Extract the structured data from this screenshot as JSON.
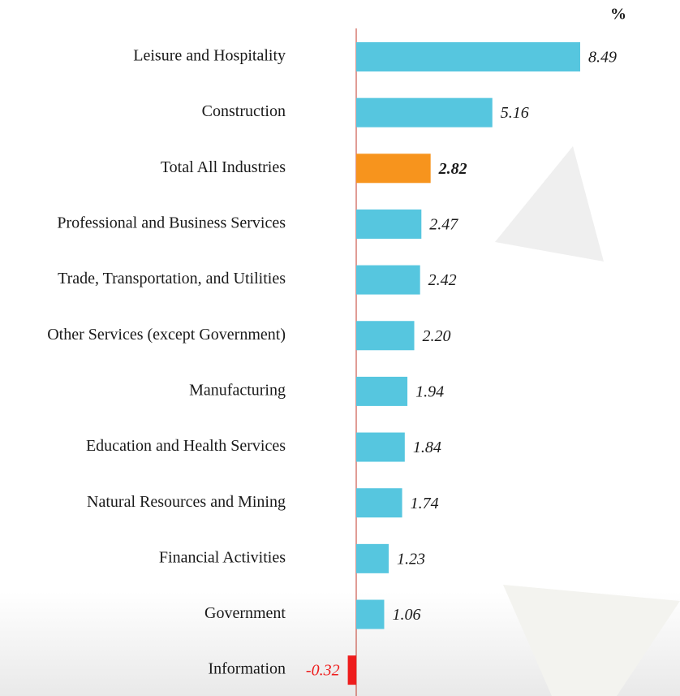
{
  "chart_data": {
    "type": "bar",
    "orientation": "horizontal",
    "unit_label": "%",
    "categories": [
      "Leisure and Hospitality",
      "Construction",
      "Total All Industries",
      "Professional and Business Services",
      "Trade, Transportation, and Utilities",
      "Other Services (except Government)",
      "Manufacturing",
      "Education and Health Services",
      "Natural Resources and Mining",
      "Financial Activities",
      "Government",
      "Information"
    ],
    "values": [
      8.49,
      5.16,
      2.82,
      2.47,
      2.42,
      2.2,
      1.94,
      1.84,
      1.74,
      1.23,
      1.06,
      -0.32
    ],
    "value_labels": [
      "8.49",
      "5.16",
      "2.82",
      "2.47",
      "2.42",
      "2.20",
      "1.94",
      "1.84",
      "1.74",
      "1.23",
      "1.06",
      "-0.32"
    ],
    "colors": [
      "#56c6df",
      "#56c6df",
      "#f7941d",
      "#56c6df",
      "#56c6df",
      "#56c6df",
      "#56c6df",
      "#56c6df",
      "#56c6df",
      "#56c6df",
      "#56c6df",
      "#ee1c1c"
    ],
    "highlight": 2,
    "zero_line_color": "#c0392b"
  }
}
